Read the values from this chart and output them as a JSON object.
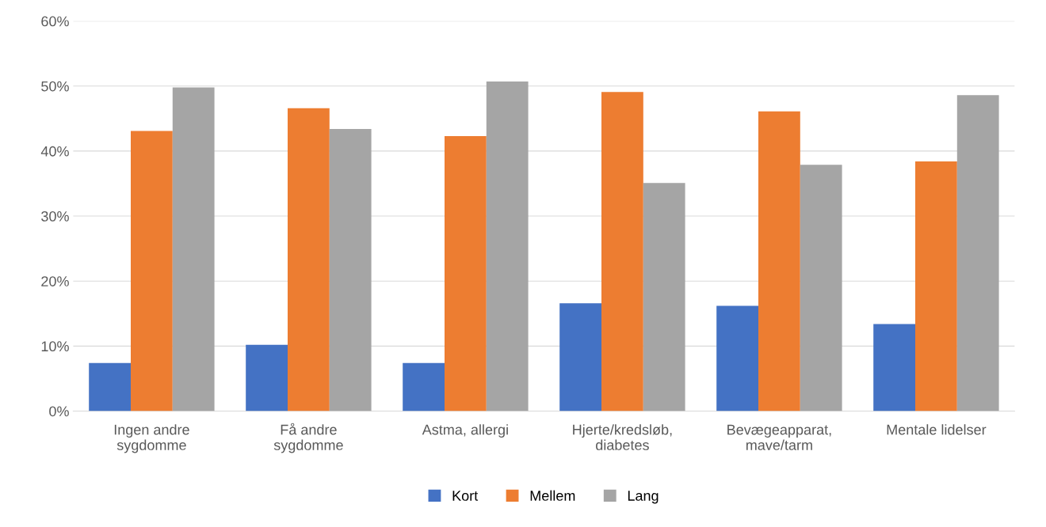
{
  "chart_data": {
    "type": "bar",
    "categories": [
      "Ingen andre\nsygdomme",
      "Få andre\nsygdomme",
      "Astma, allergi",
      "Hjerte/kredsløb,\ndiabetes",
      "Bevægeapparat,\nmave/tarm",
      "Mentale lidelser"
    ],
    "series": [
      {
        "name": "Kort",
        "color": "#4472c4",
        "values": [
          7.4,
          10.2,
          7.4,
          16.6,
          16.2,
          13.4
        ]
      },
      {
        "name": "Mellem",
        "color": "#ed7d31",
        "values": [
          43.1,
          46.6,
          42.3,
          49.1,
          46.1,
          38.4
        ]
      },
      {
        "name": "Lang",
        "color": "#a5a5a5",
        "values": [
          49.8,
          43.4,
          50.7,
          35.1,
          37.9,
          48.6
        ]
      }
    ],
    "ylim": [
      0,
      60
    ],
    "yticks": [
      {
        "value": 0,
        "label": "0%"
      },
      {
        "value": 10,
        "label": "10%"
      },
      {
        "value": 20,
        "label": "20%"
      },
      {
        "value": 30,
        "label": "30%"
      },
      {
        "value": 40,
        "label": "40%"
      },
      {
        "value": 50,
        "label": "50%"
      },
      {
        "value": 60,
        "label": "60%"
      }
    ],
    "grid": "y",
    "legend": "bottom"
  }
}
